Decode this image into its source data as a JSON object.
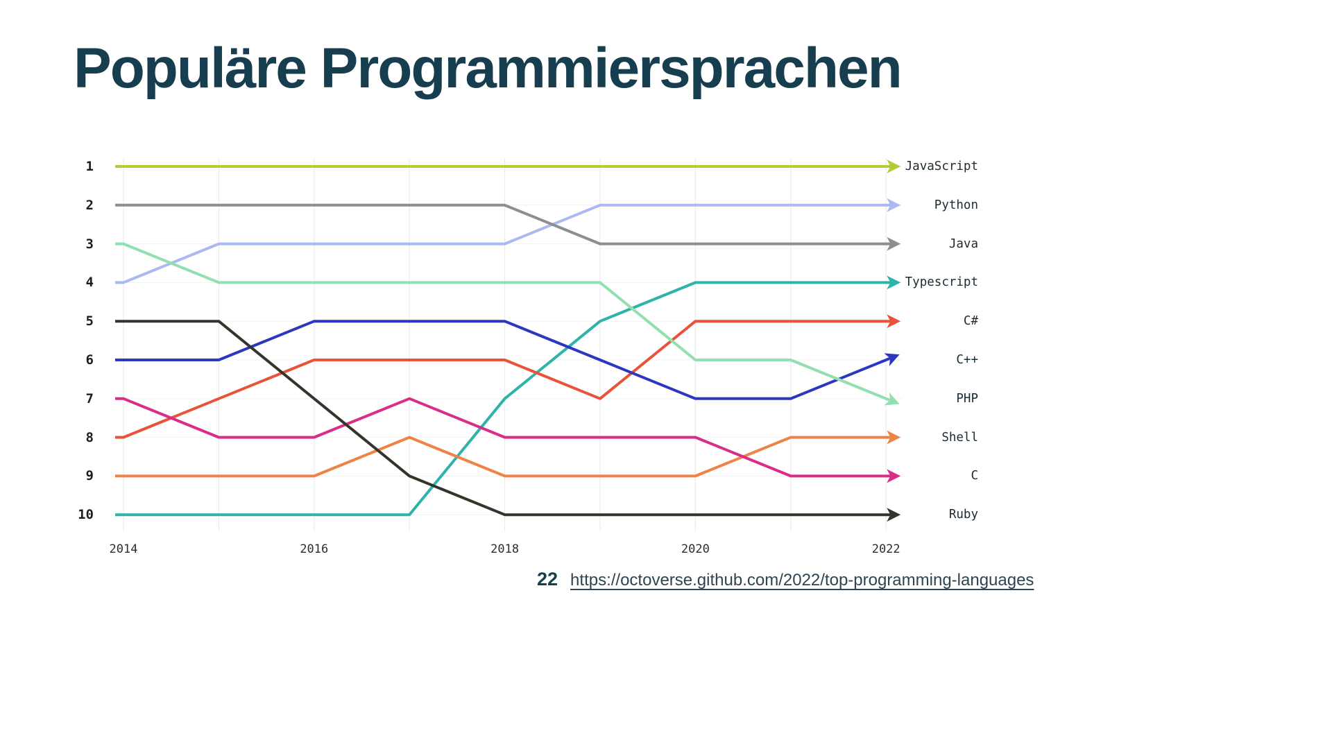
{
  "title": "Populäre Programmiersprachen",
  "theme": {
    "title_color": "#163e4e",
    "link_color": "#2e4450",
    "page_bg": "#ffffff"
  },
  "footer": {
    "page_number": "22",
    "source_link": "https://octoverse.github.com/2022/top-programming-languages"
  },
  "chart_data": {
    "type": "line",
    "subtype": "bump-rank-chart",
    "title": "",
    "xlabel": "",
    "ylabel": "",
    "x": [
      2014,
      2015,
      2016,
      2017,
      2018,
      2019,
      2020,
      2021,
      2022
    ],
    "x_ticks": [
      2014,
      2016,
      2018,
      2020,
      2022
    ],
    "y_axis": {
      "ticks": [
        1,
        2,
        3,
        4,
        5,
        6,
        7,
        8,
        9,
        10
      ],
      "ylim": [
        1,
        10
      ],
      "inverted": true,
      "meaning": "rank (1 = most popular)"
    },
    "grid": true,
    "legend_position": "right-end-labels",
    "series": [
      {
        "name": "JavaScript",
        "color": "#b5ca35",
        "values": [
          1,
          1,
          1,
          1,
          1,
          1,
          1,
          1,
          1
        ]
      },
      {
        "name": "Python",
        "color": "#aab9f2",
        "values": [
          4,
          3,
          3,
          3,
          3,
          2,
          2,
          2,
          2
        ]
      },
      {
        "name": "Java",
        "color": "#8e8e8e",
        "values": [
          2,
          2,
          2,
          2,
          2,
          3,
          3,
          3,
          3
        ]
      },
      {
        "name": "Typescript",
        "color": "#2db3a9",
        "values": [
          10,
          10,
          10,
          10,
          7,
          5,
          4,
          4,
          4
        ]
      },
      {
        "name": "C#",
        "color": "#e85339",
        "values": [
          8,
          7,
          6,
          6,
          6,
          7,
          5,
          5,
          5
        ]
      },
      {
        "name": "C++",
        "color": "#2d36c1",
        "values": [
          6,
          6,
          5,
          5,
          5,
          6,
          7,
          7,
          6
        ]
      },
      {
        "name": "PHP",
        "color": "#92dfb0",
        "values": [
          3,
          4,
          4,
          4,
          4,
          4,
          6,
          6,
          7
        ]
      },
      {
        "name": "Shell",
        "color": "#ef8246",
        "values": [
          9,
          9,
          9,
          8,
          9,
          9,
          9,
          8,
          8
        ]
      },
      {
        "name": "C",
        "color": "#da2d87",
        "values": [
          7,
          8,
          8,
          7,
          8,
          8,
          8,
          9,
          9
        ]
      },
      {
        "name": "Ruby",
        "color": "#34342b",
        "values": [
          5,
          5,
          7,
          9,
          10,
          10,
          10,
          10,
          10
        ]
      }
    ]
  }
}
